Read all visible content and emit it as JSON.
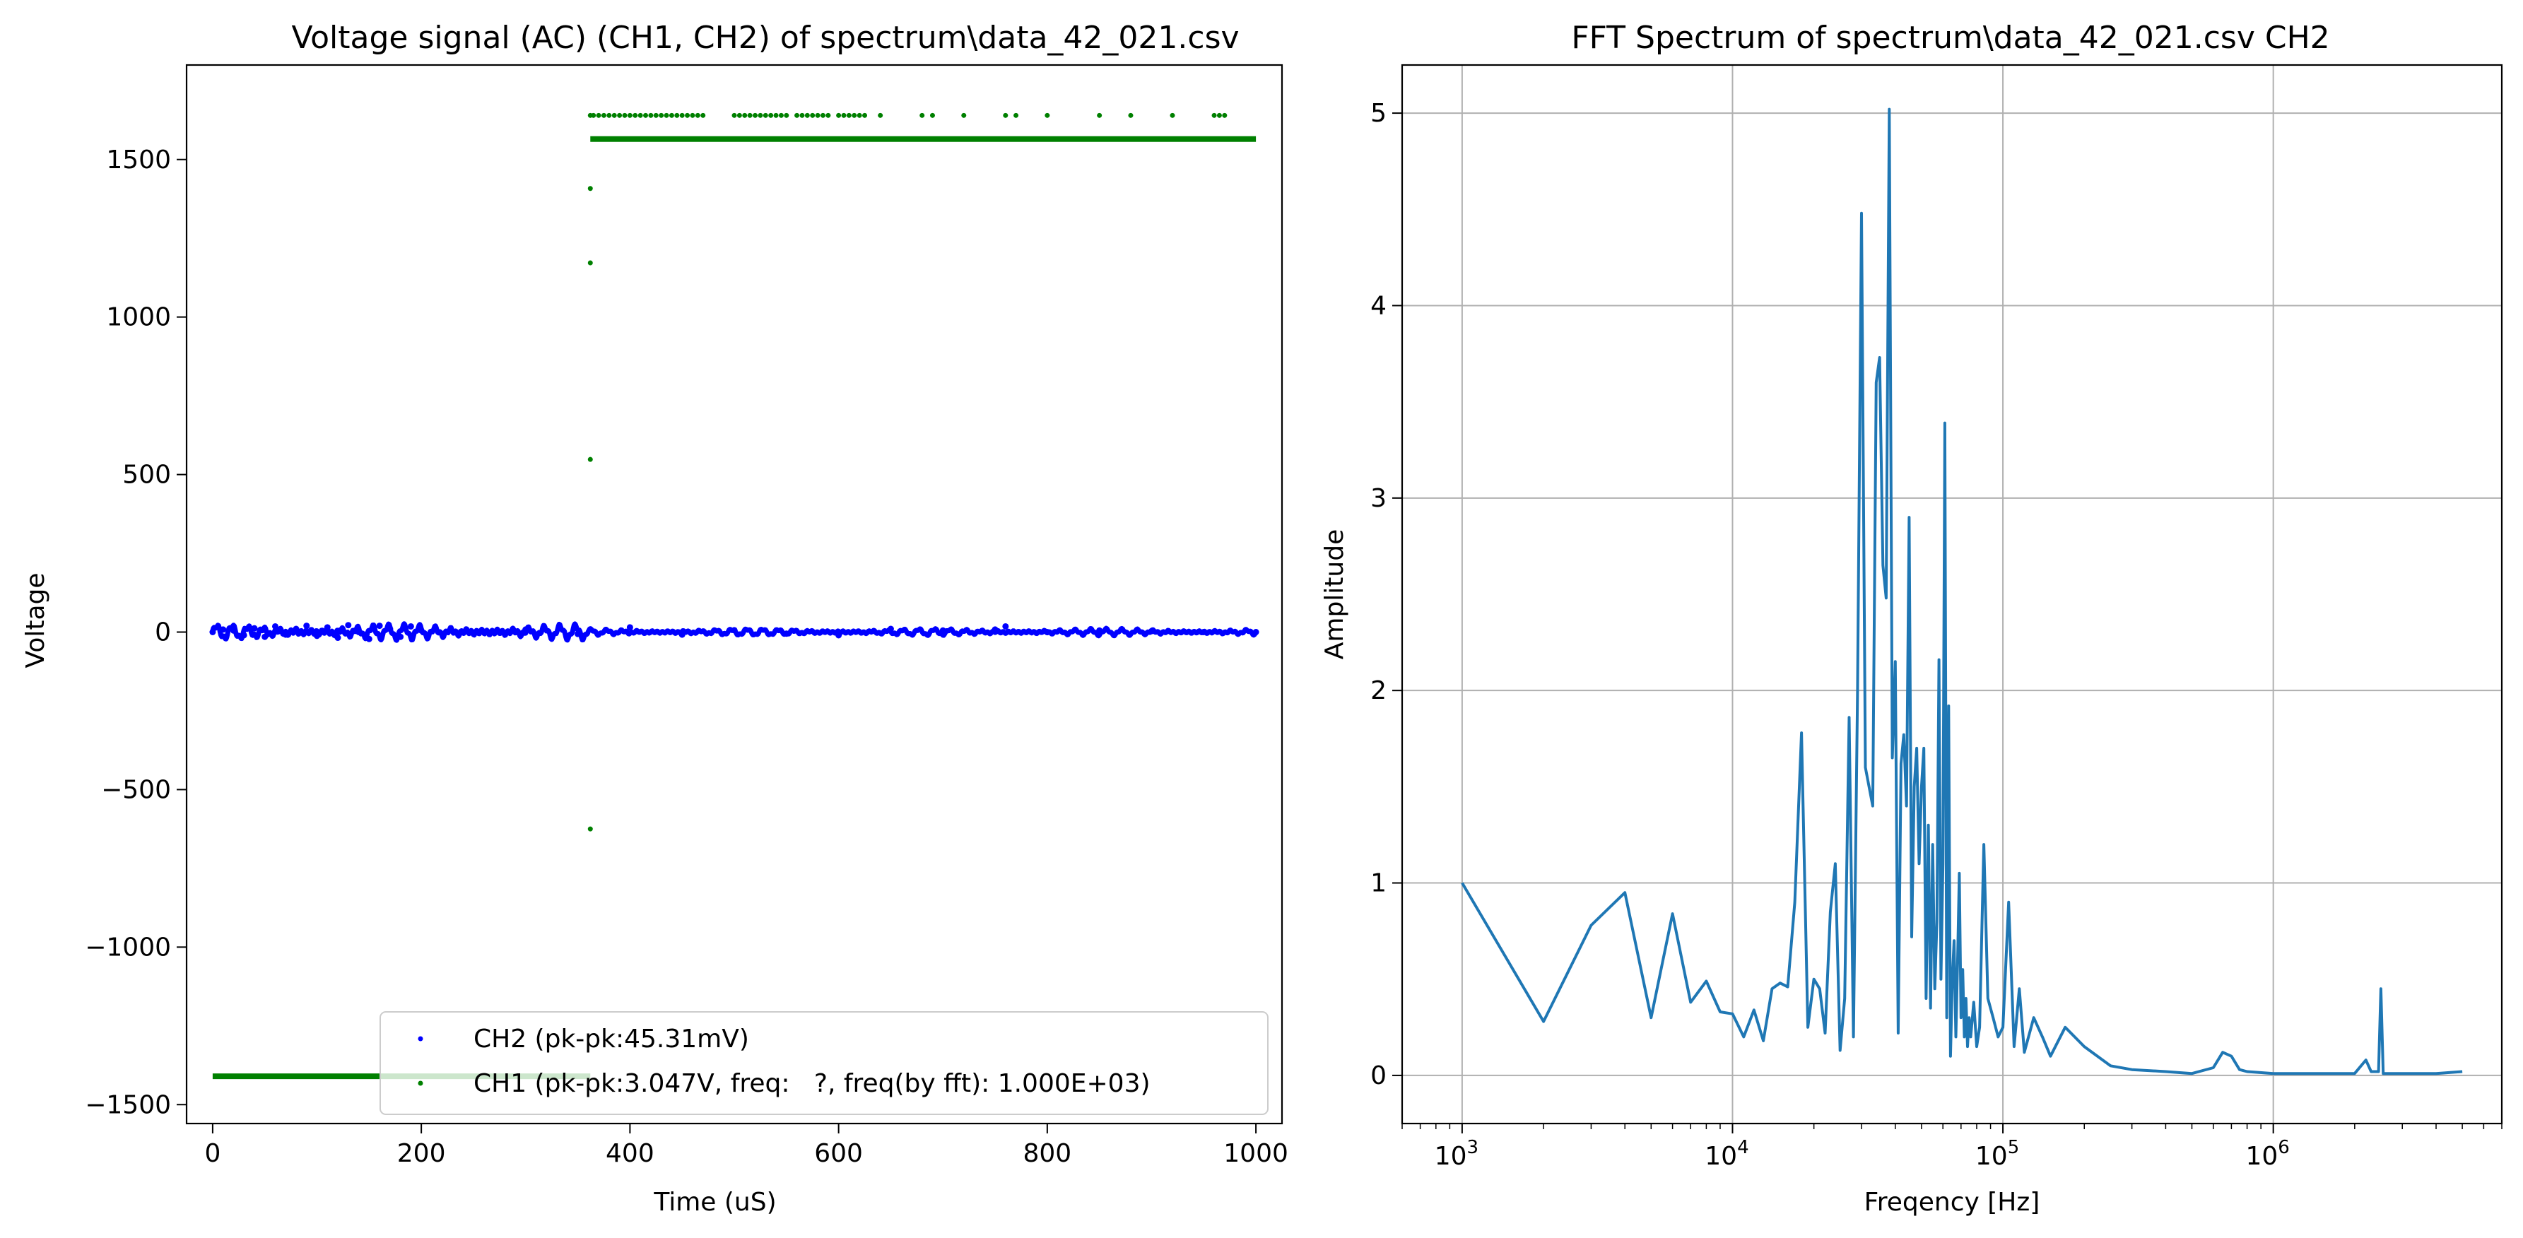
{
  "chart_data": [
    {
      "type": "scatter",
      "title": "Voltage signal (AC) (CH1, CH2) of spectrum\\data_42_021.csv",
      "xlabel": "Time (uS)",
      "ylabel": "Voltage",
      "xlim": [
        -25,
        1025
      ],
      "ylim": [
        -1560,
        1800
      ],
      "xticks": [
        0,
        200,
        400,
        600,
        800,
        1000
      ],
      "xtick_labels": [
        "0",
        "200",
        "400",
        "600",
        "800",
        "1000"
      ],
      "yticks": [
        -1500,
        -1000,
        -500,
        0,
        500,
        1000,
        1500
      ],
      "ytick_labels": [
        "−1500",
        "−1000",
        "−500",
        "0",
        "500",
        "1000",
        "1500"
      ],
      "grid": false,
      "legend_position": "lower-right",
      "series": [
        {
          "name": "CH2 (pk-pk:45.31mV)",
          "color": "#0000ff",
          "description": "noise around 0, amplitude about ±23 over 0–1000",
          "x": [
            0,
            10,
            20,
            30,
            40,
            50,
            60,
            70,
            80,
            90,
            100,
            110,
            120,
            130,
            140,
            150,
            160,
            170,
            180,
            190,
            200,
            250,
            300,
            350,
            400,
            450,
            500,
            550,
            600,
            650,
            700,
            750,
            760,
            800,
            850,
            900,
            950,
            1000
          ],
          "y": [
            0,
            8,
            5,
            -10,
            12,
            -15,
            18,
            -8,
            10,
            20,
            -12,
            15,
            -18,
            22,
            0,
            -22,
            20,
            10,
            -15,
            18,
            5,
            -5,
            8,
            -6,
            15,
            -8,
            6,
            -5,
            -10,
            10,
            5,
            8,
            18,
            0,
            5,
            3,
            0,
            0
          ]
        },
        {
          "name": "CH1 (pk-pk:3.047V, freq:   ?, freq(by fft): 1.000E+03)",
          "color": "#008000",
          "description": "low level -1410 until ~362, transition points, then high level 1565 with sparse outliers near 1640",
          "low_level": -1410,
          "high_level": 1565,
          "outlier_level": 1640,
          "transition_x": 362,
          "transition_points": [
            [
              362,
              -625
            ],
            [
              362,
              548
            ],
            [
              362,
              1172
            ],
            [
              362,
              1408
            ]
          ],
          "outlier_x": [
            362,
            365,
            370,
            375,
            380,
            385,
            390,
            395,
            400,
            405,
            410,
            415,
            420,
            425,
            430,
            435,
            440,
            445,
            450,
            455,
            460,
            465,
            470,
            500,
            505,
            510,
            515,
            520,
            525,
            530,
            535,
            540,
            545,
            550,
            560,
            565,
            570,
            575,
            580,
            585,
            590,
            600,
            605,
            610,
            615,
            620,
            625,
            640,
            680,
            690,
            720,
            760,
            770,
            800,
            850,
            880,
            920,
            960,
            965,
            970
          ]
        }
      ]
    },
    {
      "type": "line",
      "title": "FFT Spectrum of spectrum\\data_42_021.csv CH2",
      "xlabel": "Freqency [Hz]",
      "ylabel": "Amplitude",
      "xscale": "log",
      "xlim": [
        600,
        7000000
      ],
      "ylim": [
        -0.25,
        5.25
      ],
      "xticks": [
        1000,
        10000,
        100000,
        1000000
      ],
      "xtick_labels": [
        {
          "base": "10",
          "exp": "3"
        },
        {
          "base": "10",
          "exp": "4"
        },
        {
          "base": "10",
          "exp": "5"
        },
        {
          "base": "10",
          "exp": "6"
        }
      ],
      "yticks": [
        0,
        1,
        2,
        3,
        4,
        5
      ],
      "ytick_labels": [
        "0",
        "1",
        "2",
        "3",
        "4",
        "5"
      ],
      "grid": true,
      "series": [
        {
          "color": "#1f77b4",
          "x": [
            1000,
            2000,
            3000,
            4000,
            5000,
            6000,
            7000,
            8000,
            9000,
            10000,
            11000,
            12000,
            13000,
            14000,
            15000,
            16000,
            17000,
            18000,
            19000,
            20000,
            21000,
            22000,
            23000,
            24000,
            25000,
            26000,
            27000,
            28000,
            29000,
            30000,
            31000,
            32000,
            33000,
            34000,
            35000,
            36000,
            37000,
            38000,
            39000,
            40000,
            41000,
            42000,
            43000,
            44000,
            45000,
            46000,
            47000,
            48000,
            49000,
            50000,
            51000,
            52000,
            53000,
            54000,
            55000,
            56000,
            57000,
            58000,
            59000,
            60000,
            61000,
            62000,
            63000,
            64000,
            65000,
            66000,
            67000,
            68000,
            69000,
            70000,
            71000,
            72000,
            73000,
            74000,
            75000,
            76000,
            78000,
            80000,
            82000,
            85000,
            88000,
            92000,
            96000,
            100000,
            105000,
            110000,
            115000,
            120000,
            130000,
            140000,
            150000,
            170000,
            200000,
            250000,
            300000,
            400000,
            500000,
            600000,
            650000,
            700000,
            750000,
            800000,
            1000000,
            1500000,
            2000000,
            2200000,
            2300000,
            2450000,
            2500000,
            2550000,
            3000000,
            4000000,
            5000000
          ],
          "y": [
            1.0,
            0.28,
            0.78,
            0.95,
            0.3,
            0.84,
            0.38,
            0.49,
            0.33,
            0.32,
            0.2,
            0.34,
            0.18,
            0.45,
            0.48,
            0.46,
            0.9,
            1.78,
            0.25,
            0.5,
            0.45,
            0.22,
            0.85,
            1.1,
            0.13,
            0.4,
            1.86,
            0.2,
            2.0,
            4.48,
            1.6,
            1.5,
            1.4,
            3.6,
            3.73,
            2.65,
            2.48,
            5.02,
            1.65,
            2.15,
            0.22,
            1.62,
            1.77,
            1.4,
            2.9,
            0.72,
            1.5,
            1.7,
            1.1,
            1.5,
            1.7,
            0.4,
            1.3,
            0.35,
            1.2,
            0.45,
            0.8,
            2.16,
            0.5,
            1.1,
            3.39,
            0.3,
            1.92,
            0.1,
            0.5,
            0.7,
            0.2,
            0.6,
            1.05,
            0.3,
            0.55,
            0.2,
            0.4,
            0.15,
            0.3,
            0.2,
            0.38,
            0.15,
            0.25,
            1.2,
            0.4,
            0.3,
            0.2,
            0.25,
            0.9,
            0.15,
            0.45,
            0.12,
            0.3,
            0.2,
            0.1,
            0.25,
            0.15,
            0.05,
            0.03,
            0.02,
            0.01,
            0.04,
            0.12,
            0.1,
            0.03,
            0.02,
            0.01,
            0.01,
            0.01,
            0.08,
            0.02,
            0.02,
            0.45,
            0.01,
            0.01,
            0.01,
            0.02
          ]
        }
      ]
    }
  ]
}
